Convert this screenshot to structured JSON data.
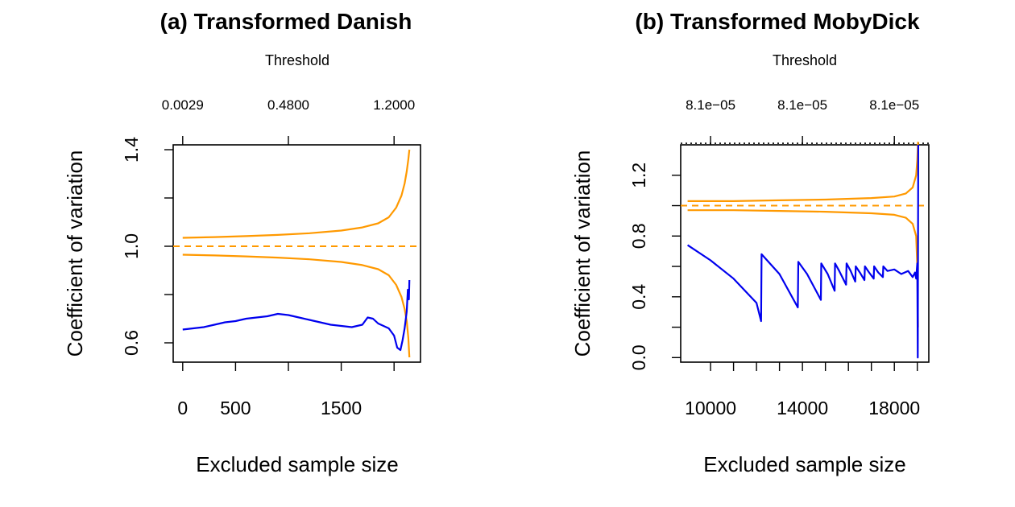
{
  "chart_data": [
    {
      "type": "line",
      "title": "(a) Transformed Danish",
      "xlabel": "Excluded sample size",
      "ylabel": "Coefficient of variation",
      "top_axis_label": "Threshold",
      "top_ticks": [
        {
          "at": 0,
          "label": "0.0029"
        },
        {
          "at": 1000,
          "label": "0.4800"
        },
        {
          "at": 2000,
          "label": "1.2000"
        }
      ],
      "xlim": [
        -90,
        2250
      ],
      "ylim": [
        0.52,
        1.42
      ],
      "xticks": [
        0,
        500,
        1000,
        1500,
        2000
      ],
      "xtick_labels": [
        "0",
        "500",
        "",
        "1500",
        ""
      ],
      "yticks": [
        0.6,
        0.8,
        1.0,
        1.2,
        1.4
      ],
      "ytick_labels": [
        "0.6",
        "",
        "1.0",
        "",
        "1.4"
      ],
      "reference_line": {
        "y": 1.0,
        "style": "dashed",
        "color": "#ff9900"
      },
      "series": [
        {
          "color": "#ff9900",
          "x": [
            0,
            300,
            600,
            900,
            1200,
            1500,
            1700,
            1850,
            1950,
            2020,
            2070,
            2100,
            2120,
            2135,
            2145
          ],
          "y": [
            1.035,
            1.038,
            1.042,
            1.047,
            1.054,
            1.065,
            1.078,
            1.095,
            1.12,
            1.16,
            1.21,
            1.26,
            1.31,
            1.36,
            1.4
          ]
        },
        {
          "color": "#ff9900",
          "x": [
            0,
            300,
            600,
            900,
            1200,
            1500,
            1700,
            1850,
            1950,
            2020,
            2070,
            2100,
            2120,
            2135,
            2145
          ],
          "y": [
            0.965,
            0.962,
            0.958,
            0.953,
            0.946,
            0.935,
            0.922,
            0.905,
            0.88,
            0.84,
            0.79,
            0.74,
            0.69,
            0.62,
            0.54
          ]
        },
        {
          "color": "#0000ee",
          "x": [
            0,
            100,
            200,
            300,
            400,
            500,
            600,
            700,
            800,
            900,
            1000,
            1100,
            1200,
            1300,
            1400,
            1500,
            1600,
            1700,
            1750,
            1800,
            1850,
            1900,
            1950,
            2000,
            2030,
            2060,
            2080,
            2100,
            2120,
            2130,
            2140,
            2145
          ],
          "y": [
            0.655,
            0.66,
            0.665,
            0.675,
            0.685,
            0.69,
            0.7,
            0.705,
            0.71,
            0.72,
            0.715,
            0.705,
            0.695,
            0.685,
            0.675,
            0.67,
            0.665,
            0.675,
            0.705,
            0.7,
            0.68,
            0.67,
            0.66,
            0.63,
            0.58,
            0.57,
            0.61,
            0.66,
            0.73,
            0.82,
            0.78,
            0.86
          ]
        }
      ]
    },
    {
      "type": "line",
      "title": "(b) Transformed MobyDick",
      "xlabel": "Excluded sample size",
      "ylabel": "Coefficient of variation",
      "top_axis_label": "Threshold",
      "top_ticks": [
        {
          "at": 10000,
          "label": "8.1e−05"
        },
        {
          "at": 14000,
          "label": "8.1e−05"
        },
        {
          "at": 18000,
          "label": "8.1e−05"
        }
      ],
      "xlim": [
        8700,
        19500
      ],
      "ylim": [
        -0.03,
        1.4
      ],
      "xticks": [
        10000,
        11000,
        12000,
        13000,
        14000,
        15000,
        16000,
        17000,
        18000,
        19000
      ],
      "xtick_labels": [
        "10000",
        "",
        "",
        "",
        "14000",
        "",
        "",
        "",
        "18000",
        ""
      ],
      "yticks": [
        0.0,
        0.2,
        0.4,
        0.6,
        0.8,
        1.0,
        1.2
      ],
      "ytick_labels": [
        "0.0",
        "",
        "0.4",
        "",
        "0.8",
        "",
        "1.2"
      ],
      "reference_line": {
        "y": 1.0,
        "style": "dashed",
        "color": "#ff9900"
      },
      "upper_reference_line": {
        "y": 1.41,
        "style": "dotted",
        "color": "#000000"
      },
      "series": [
        {
          "color": "#ff9900",
          "x": [
            9000,
            11000,
            13000,
            15000,
            17000,
            18000,
            18500,
            18800,
            18950,
            19000,
            19030
          ],
          "y": [
            1.03,
            1.03,
            1.035,
            1.04,
            1.05,
            1.06,
            1.08,
            1.12,
            1.2,
            1.3,
            1.42
          ]
        },
        {
          "color": "#ff9900",
          "x": [
            9000,
            11000,
            13000,
            15000,
            17000,
            18000,
            18500,
            18800,
            18950,
            19000,
            19030
          ],
          "y": [
            0.97,
            0.97,
            0.965,
            0.96,
            0.95,
            0.94,
            0.92,
            0.88,
            0.8,
            0.6,
            0.2
          ]
        },
        {
          "color": "#0000ee",
          "x": [
            9000,
            10000,
            11000,
            12000,
            12200,
            12220,
            13000,
            13800,
            13820,
            14200,
            14800,
            14820,
            15100,
            15400,
            15420,
            15600,
            15900,
            15920,
            16100,
            16300,
            16320,
            16500,
            16700,
            16720,
            16900,
            17100,
            17120,
            17300,
            17500,
            17520,
            17700,
            18000,
            18300,
            18600,
            18800,
            18900,
            18950,
            19000,
            19020,
            19040
          ],
          "y": [
            0.74,
            0.64,
            0.52,
            0.36,
            0.24,
            0.68,
            0.55,
            0.33,
            0.63,
            0.55,
            0.38,
            0.62,
            0.55,
            0.44,
            0.62,
            0.57,
            0.48,
            0.62,
            0.57,
            0.5,
            0.6,
            0.56,
            0.51,
            0.6,
            0.56,
            0.52,
            0.6,
            0.56,
            0.53,
            0.6,
            0.57,
            0.58,
            0.55,
            0.57,
            0.53,
            0.56,
            0.52,
            0.62,
            0.0,
            1.4
          ]
        }
      ]
    }
  ]
}
